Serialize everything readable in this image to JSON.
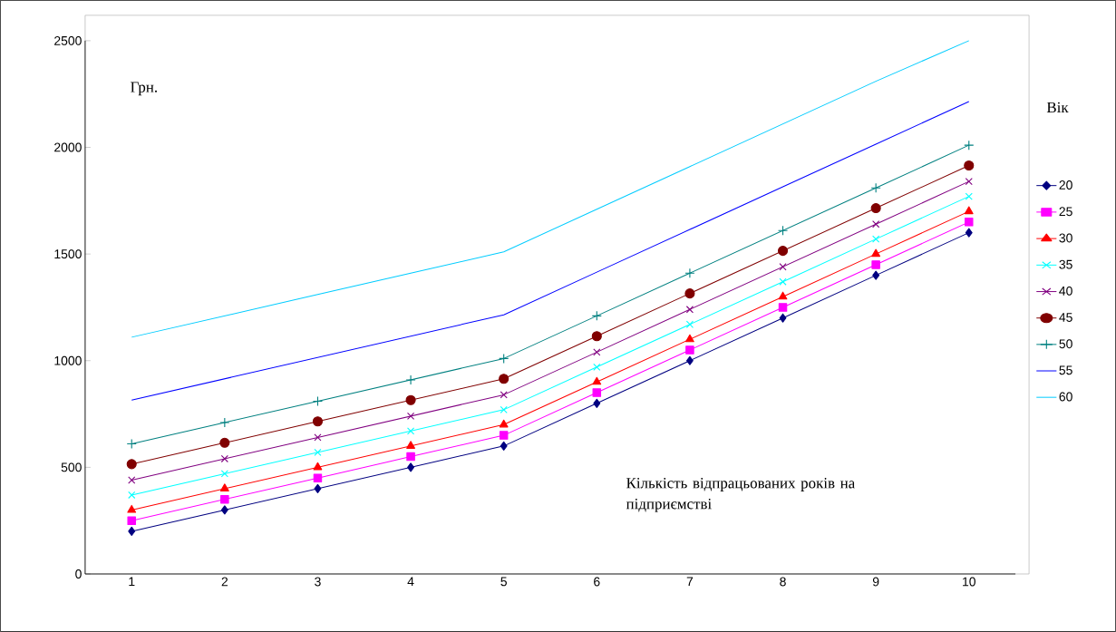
{
  "chart_data": {
    "type": "line",
    "ylabel": "Грн.",
    "xlabel": "Кількість відпрацьованих років на підприємстві",
    "legend_title": "Вік",
    "categories": [
      "1",
      "2",
      "3",
      "4",
      "5",
      "6",
      "7",
      "8",
      "9",
      "10"
    ],
    "ylim": [
      0,
      2500
    ],
    "yticks": [
      0,
      500,
      1000,
      1500,
      2000,
      2500
    ],
    "grid": false,
    "legend": "right",
    "line_style": "solid",
    "series": [
      {
        "name": "20",
        "color": "#000080",
        "marker": "diamond",
        "values": [
          200,
          300,
          400,
          500,
          600,
          800,
          1000,
          1200,
          1400,
          1600
        ]
      },
      {
        "name": "25",
        "color": "#ff00ff",
        "marker": "square",
        "values": [
          250,
          350,
          450,
          550,
          650,
          850,
          1050,
          1250,
          1450,
          1650
        ]
      },
      {
        "name": "30",
        "color": "#ff0000",
        "marker": "triangle",
        "values": [
          300,
          400,
          500,
          600,
          700,
          900,
          1100,
          1300,
          1500,
          1700
        ]
      },
      {
        "name": "35",
        "color": "#00ffff",
        "marker": "cross",
        "values": [
          370,
          470,
          570,
          670,
          770,
          970,
          1170,
          1370,
          1570,
          1770
        ]
      },
      {
        "name": "40",
        "color": "#800080",
        "marker": "cross",
        "values": [
          440,
          540,
          640,
          740,
          840,
          1040,
          1240,
          1440,
          1640,
          1840
        ]
      },
      {
        "name": "45",
        "color": "#800000",
        "marker": "circle",
        "values": [
          515,
          615,
          715,
          815,
          915,
          1115,
          1315,
          1515,
          1715,
          1915
        ]
      },
      {
        "name": "50",
        "color": "#008080",
        "marker": "plus",
        "values": [
          610,
          710,
          810,
          910,
          1010,
          1210,
          1410,
          1610,
          1810,
          2010
        ]
      },
      {
        "name": "55",
        "color": "#0000ff",
        "marker": "none",
        "values": [
          815,
          915,
          1015,
          1115,
          1215,
          1415,
          1615,
          1815,
          2015,
          2215
        ]
      },
      {
        "name": "60",
        "color": "#00ccff",
        "marker": "none",
        "values": [
          1110,
          1210,
          1310,
          1410,
          1510,
          1710,
          1910,
          2110,
          2310,
          2500
        ]
      }
    ]
  }
}
